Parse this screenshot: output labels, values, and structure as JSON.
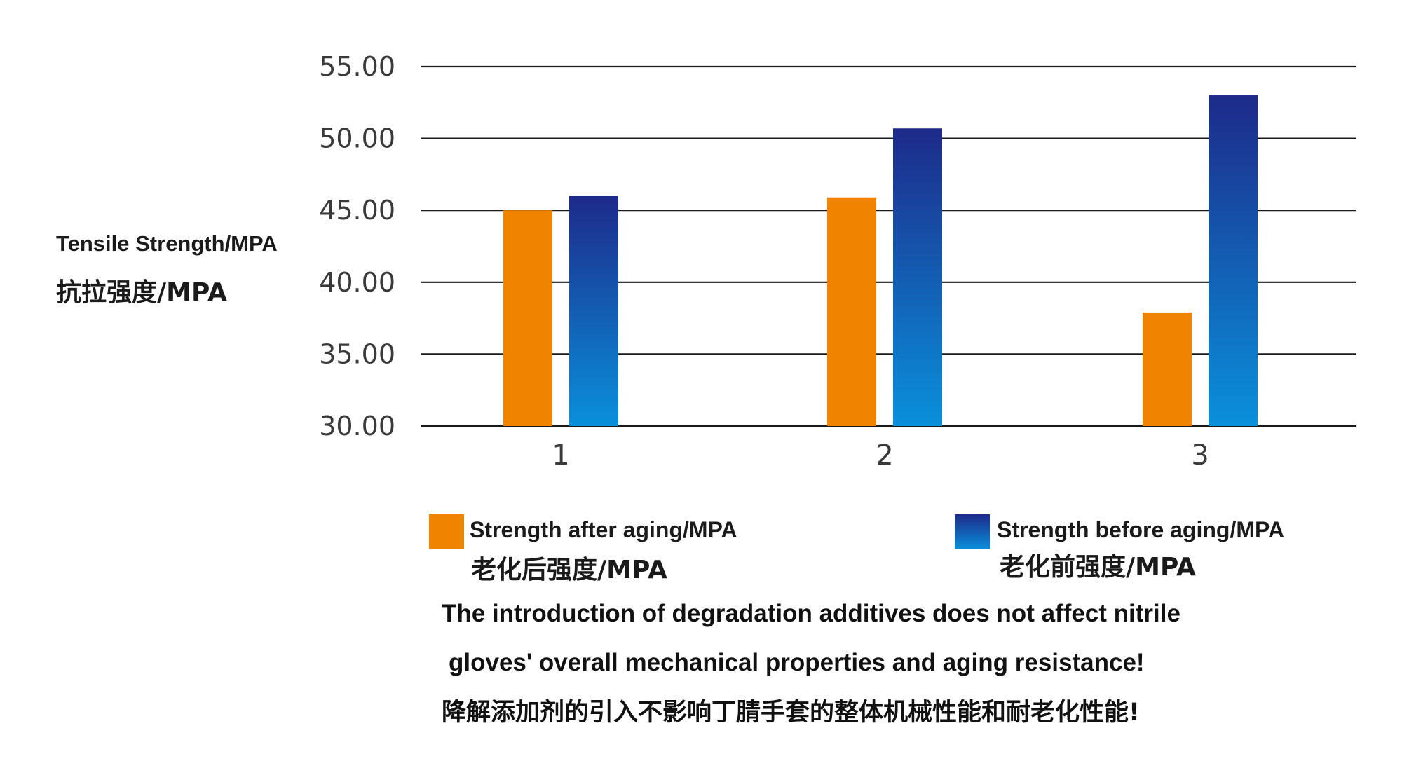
{
  "chart_data": {
    "type": "bar",
    "ylabel": "Tensile Strength/MPA",
    "ylabel_zh": "抗拉强度/MPA",
    "categories": [
      "1",
      "2",
      "3"
    ],
    "y_ticks": [
      "55.00",
      "50.00",
      "45.00",
      "40.00",
      "35.00",
      "30.00"
    ],
    "ylim": [
      30,
      55
    ],
    "grid": true,
    "legend_position": "bottom",
    "series": [
      {
        "name": "Strength after aging/MPA",
        "name_zh": "老化后强度/MPA",
        "color": "#f08300",
        "values": [
          45.0,
          45.9,
          37.9
        ]
      },
      {
        "name": "Strength before aging/MPA",
        "name_zh": "老化前强度/MPA",
        "color_top": "#1e2a8a",
        "color_bottom": "#0a90db",
        "values": [
          46.0,
          50.7,
          53.0
        ]
      }
    ]
  },
  "caption": {
    "line1": "The introduction of degradation additives does not affect nitrile",
    "line2": "gloves' overall mechanical properties and aging resistance!",
    "zh": "降解添加剂的引入不影响丁腈手套的整体机械性能和耐老化性能!"
  }
}
